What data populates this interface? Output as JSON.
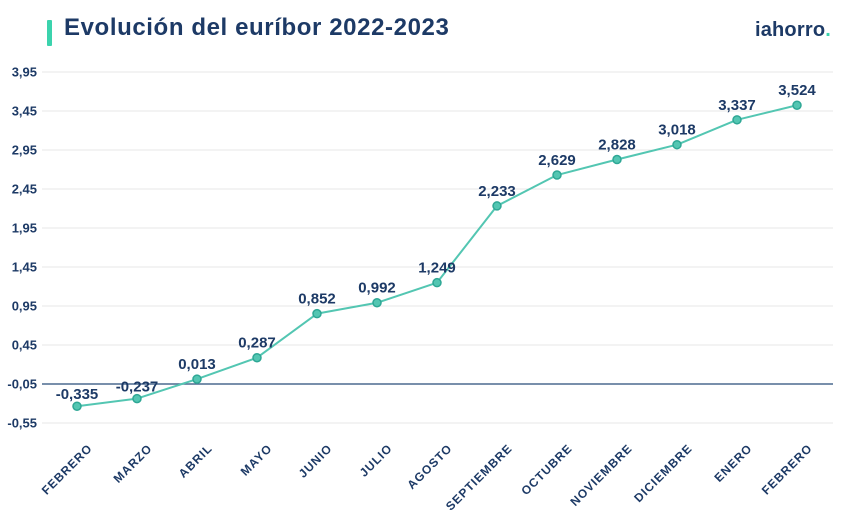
{
  "header": {
    "title": "Evolución del euríbor 2022-2023",
    "accent_color": "#3bd3ad",
    "logo": {
      "text": "iahorro",
      "dot": "."
    }
  },
  "chart_data": {
    "type": "line",
    "title": "Evolución del euríbor 2022-2023",
    "categories": [
      "FEBRERO",
      "MARZO",
      "ABRIL",
      "MAYO",
      "JUNIO",
      "JULIO",
      "AGOSTO",
      "SEPTIEMBRE",
      "OCTUBRE",
      "NOVIEMBRE",
      "DICIEMBRE",
      "ENERO",
      "FEBRERO"
    ],
    "values": [
      -0.335,
      -0.237,
      0.013,
      0.287,
      0.852,
      0.992,
      1.249,
      2.233,
      2.629,
      2.828,
      3.018,
      3.337,
      3.524
    ],
    "point_labels": [
      "-0,335",
      "-0,237",
      "0,013",
      "0,287",
      "0,852",
      "0,992",
      "1,249",
      "2,233",
      "2,629",
      "2,828",
      "3,018",
      "3,337",
      "3,524"
    ],
    "y_ticks": [
      "3,95",
      "3,45",
      "2,95",
      "2,45",
      "1,95",
      "1,45",
      "0,95",
      "0,45",
      "-0,05",
      "-0,55"
    ],
    "y_tick_values": [
      3.95,
      3.45,
      2.95,
      2.45,
      1.95,
      1.45,
      0.95,
      0.45,
      -0.05,
      -0.55
    ],
    "ylim": [
      -0.55,
      3.95
    ],
    "baseline": {
      "value": -0.05,
      "color": "#4c6a8f"
    },
    "grid": true,
    "legend": "none",
    "colors": {
      "line": "#53c6b2",
      "marker_fill": "#53c6b2",
      "marker_stroke": "#2ea795",
      "grid": "#e7e7e7",
      "text": "#1d3a66"
    }
  }
}
